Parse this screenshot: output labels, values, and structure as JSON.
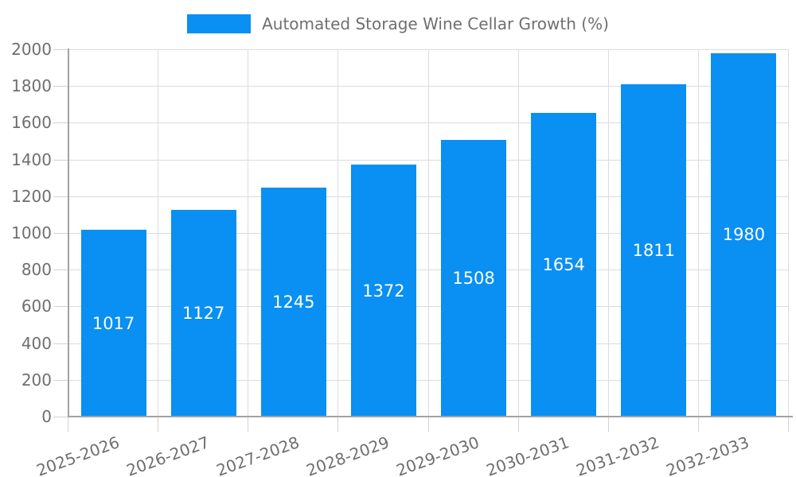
{
  "chart_data": {
    "type": "bar",
    "title": "",
    "legend_label": "Automated Storage Wine Cellar Growth (%)",
    "legend_position": "top",
    "categories": [
      "2025-2026",
      "2026-2027",
      "2027-2028",
      "2028-2029",
      "2029-2030",
      "2030-2031",
      "2031-2032",
      "2032-2033"
    ],
    "values": [
      1017,
      1127,
      1245,
      1372,
      1508,
      1654,
      1811,
      1980
    ],
    "bar_value_labels": [
      "1017",
      "1127",
      "1245",
      "1372",
      "1508",
      "1654",
      "1811",
      "1980"
    ],
    "xlabel": "",
    "ylabel": "",
    "ylim": [
      0,
      2000
    ],
    "ytick_step": 200,
    "ytick_labels": [
      "0",
      "200",
      "400",
      "600",
      "800",
      "1000",
      "1200",
      "1400",
      "1600",
      "1800",
      "2000"
    ],
    "grid": true,
    "x_label_rotation_deg": 20,
    "colors": {
      "bar": "#0a8ff2",
      "bar_value_text": "#ffffff",
      "axis_text": "#6f6f6f",
      "grid_line": "#dcdcdc",
      "axis_line": "#a3a3a3",
      "tick": "#d2d2d2",
      "background": "#ffffff"
    }
  }
}
